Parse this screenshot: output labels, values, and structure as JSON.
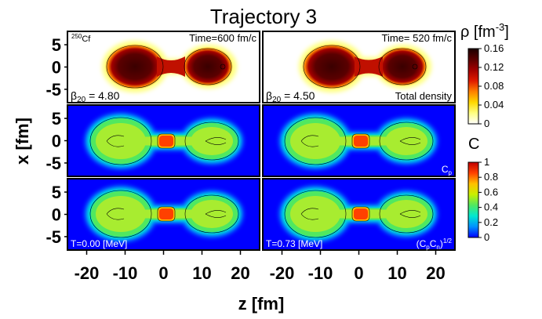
{
  "figure": {
    "title": "Trajectory 3",
    "ylabel": "x [fm]",
    "xlabel": "z [fm]",
    "x_ticks": [
      "-20",
      "-10",
      "0",
      "10",
      "20"
    ],
    "y_ticks": [
      "5",
      "0",
      "-5"
    ]
  },
  "panels": {
    "p00": {
      "tl": "250Cf",
      "tl_sup": "250",
      "tl_base": "Cf",
      "tr": "Time=600 fm/c",
      "bl": "β20 = 4.80",
      "bl_sym": "β",
      "bl_sub": "20",
      "bl_rest": " = 4.80"
    },
    "p01": {
      "tr": "Time= 520 fm/c",
      "bl": "β20 = 4.50",
      "bl_sym": "β",
      "bl_sub": "20",
      "bl_rest": " = 4.50",
      "br": "Total density"
    },
    "p10": {},
    "p11": {
      "br": "Cp",
      "br_base": "C",
      "br_sub": "p"
    },
    "p20": {
      "bl": "T=0.00 [MeV]"
    },
    "p21": {
      "bl": "T=0.73 [MeV]",
      "br": "(CpCn)1/2",
      "br_a": "(C",
      "br_b": "p",
      "br_c": "C",
      "br_d": "n",
      "br_e": ")",
      "br_sup": "1/2"
    }
  },
  "colorbars": {
    "density": {
      "label": "ρ [fm-3]",
      "label_base": "ρ [fm",
      "label_sup": "-3",
      "label_end": "]",
      "ticks": [
        "0.16",
        "0.12",
        "0.08",
        "0.04",
        "0"
      ],
      "range": [
        0,
        0.16
      ],
      "colors": [
        "#ffffff",
        "#ffff80",
        "#ffd800",
        "#ff8000",
        "#e01a00",
        "#a30000",
        "#5a0000",
        "#1a0000"
      ]
    },
    "localization": {
      "label": "C",
      "ticks": [
        "1",
        "0.8",
        "0.6",
        "0.4",
        "0.2",
        "0"
      ],
      "range": [
        0,
        1
      ],
      "colors": [
        "#0000ff",
        "#0090ff",
        "#00e8d0",
        "#50e860",
        "#c8f000",
        "#ffc000",
        "#ff4000",
        "#c00000"
      ]
    }
  },
  "chart_data": {
    "type": "heatmap",
    "title": "Trajectory 3",
    "xlabel": "z [fm]",
    "ylabel": "x [fm]",
    "xlim": [
      -25,
      25
    ],
    "ylim": [
      -8,
      8
    ],
    "x_ticks": [
      -20,
      -10,
      0,
      10,
      20
    ],
    "y_ticks": [
      5,
      0,
      -5
    ],
    "grid": false,
    "panels": [
      {
        "row": 0,
        "col": 0,
        "quantity": "total density",
        "time_fm_c": 600,
        "beta20": 4.8,
        "fragment_centers_z": [
          -10.5,
          13.0
        ],
        "neck_z": 1.5
      },
      {
        "row": 0,
        "col": 1,
        "quantity": "total density",
        "time_fm_c": 520,
        "beta20": 4.5,
        "fragment_centers_z": [
          -10.0,
          13.5
        ],
        "neck_z": 2.0
      },
      {
        "row": 1,
        "col": 0,
        "quantity": "Cp",
        "T_MeV": 0.0
      },
      {
        "row": 1,
        "col": 1,
        "quantity": "Cp",
        "T_MeV": 0.73
      },
      {
        "row": 2,
        "col": 0,
        "quantity": "(CpCn)^1/2",
        "T_MeV": 0.0
      },
      {
        "row": 2,
        "col": 1,
        "quantity": "(CpCn)^1/2",
        "T_MeV": 0.73
      }
    ],
    "colorbar_density_range": [
      0,
      0.16
    ],
    "colorbar_C_range": [
      0,
      1
    ]
  }
}
